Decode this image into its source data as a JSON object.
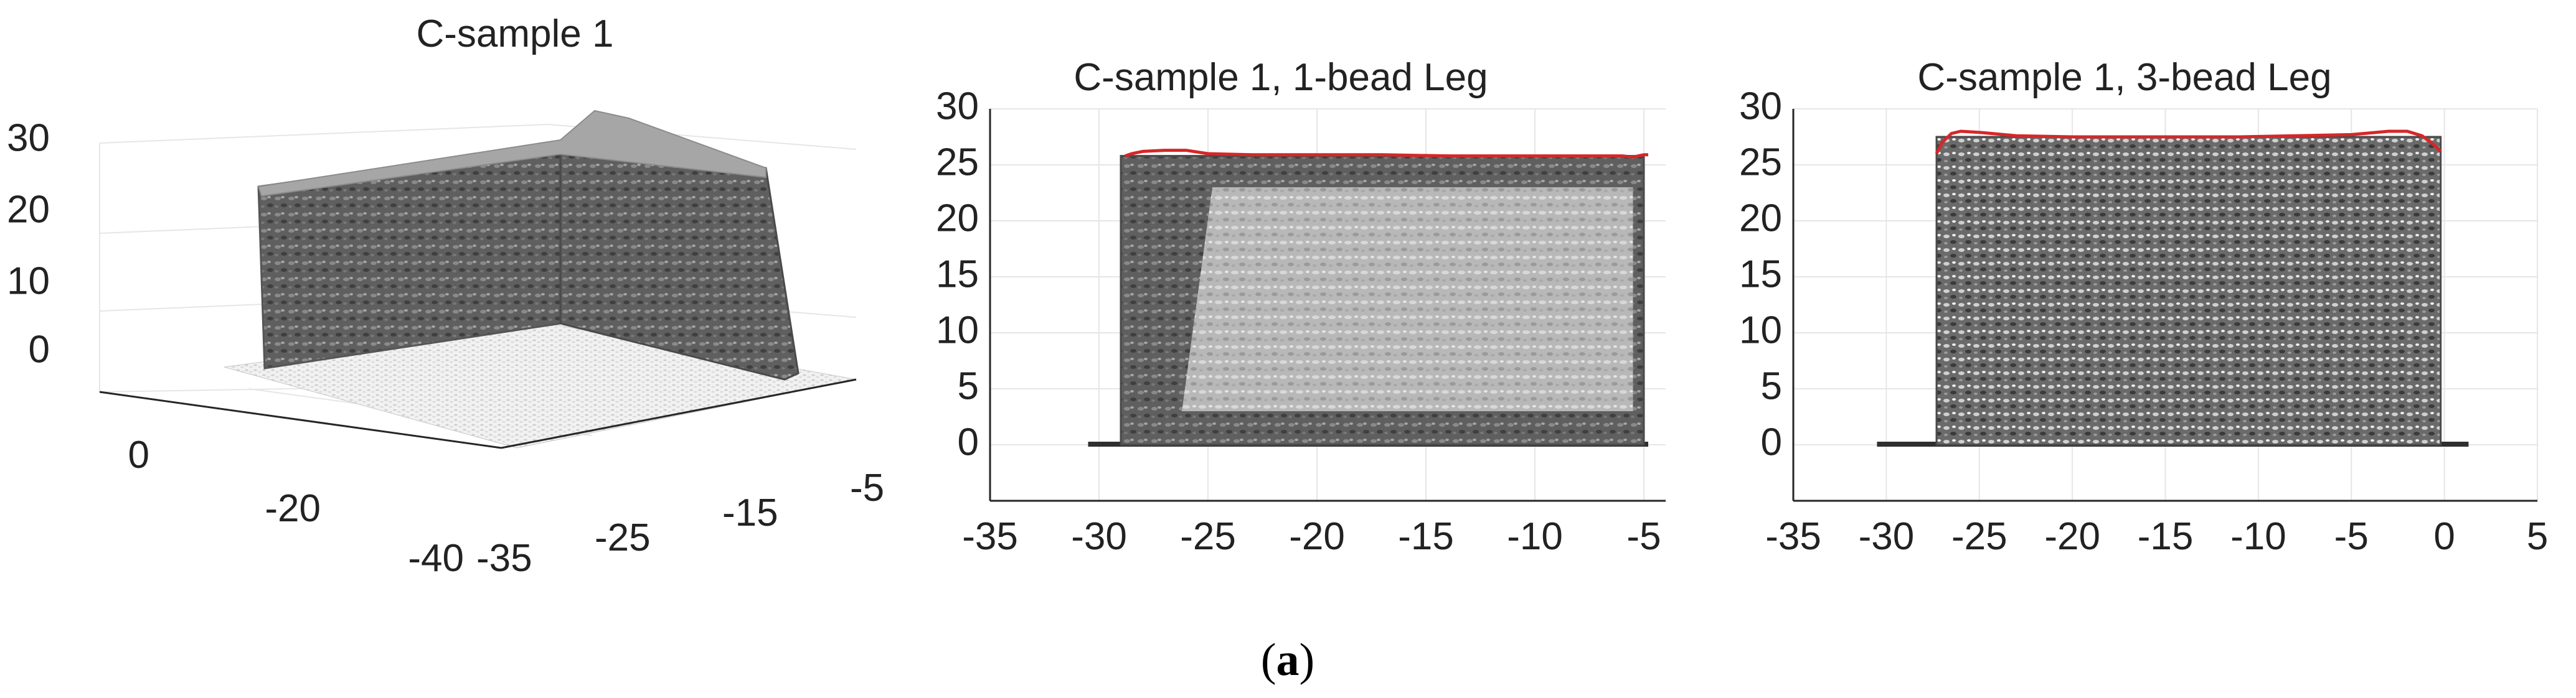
{
  "chart_data": [
    {
      "type": "scatter",
      "title": "C-sample 1",
      "view": "3d",
      "x_ticks": [
        "-35",
        "-25",
        "-15",
        "-5"
      ],
      "y_ticks": [
        "0",
        "-20",
        "-40"
      ],
      "z_ticks": [
        "0",
        "10",
        "20",
        "30"
      ],
      "xlim": [
        -35,
        -5
      ],
      "ylim": [
        -40,
        0
      ],
      "zlim": [
        0,
        30
      ],
      "grid": true
    },
    {
      "type": "line",
      "title": "C-sample 1, 1-bead Leg",
      "xlim": [
        -35,
        -4
      ],
      "ylim": [
        -5,
        30
      ],
      "x_ticks": [
        -35,
        -30,
        -25,
        -20,
        -15,
        -10,
        -5
      ],
      "y_ticks": [
        0,
        5,
        10,
        15,
        20,
        25,
        30
      ],
      "grid": true,
      "line_color": "#d62728",
      "series": [
        {
          "x": [
            -28.8,
            -28.5,
            -28,
            -27,
            -26,
            -25,
            -23,
            -20,
            -17,
            -14,
            -11,
            -8,
            -6.5,
            -6,
            -5.5,
            -5,
            -4.8
          ],
          "y": [
            25.8,
            26.0,
            26.2,
            26.3,
            26.3,
            26.0,
            25.9,
            25.9,
            25.9,
            25.8,
            25.8,
            25.8,
            25.8,
            25.8,
            25.7,
            25.9,
            25.9
          ]
        }
      ],
      "profile_extent": {
        "base_x": [
          -30.5,
          -4.8
        ],
        "wall_x": [
          -29,
          -5
        ],
        "wall_top": 25.8
      }
    },
    {
      "type": "line",
      "title": "C-sample 1, 3-bead Leg",
      "xlim": [
        -35,
        5
      ],
      "ylim": [
        -5,
        30
      ],
      "x_ticks": [
        -35,
        -30,
        -25,
        -20,
        -15,
        -10,
        -5,
        0,
        5
      ],
      "y_ticks": [
        0,
        5,
        10,
        15,
        20,
        25,
        30
      ],
      "grid": true,
      "line_color": "#d62728",
      "series": [
        {
          "x": [
            -27.3,
            -27,
            -26.5,
            -26,
            -25,
            -23,
            -20,
            -17,
            -14,
            -11,
            -8,
            -5,
            -3,
            -2,
            -1.2,
            -0.5,
            -0.2
          ],
          "y": [
            26.0,
            27.0,
            27.8,
            28.0,
            27.9,
            27.6,
            27.5,
            27.5,
            27.5,
            27.5,
            27.6,
            27.7,
            28.0,
            28.0,
            27.6,
            26.7,
            26.2
          ]
        }
      ],
      "profile_extent": {
        "base_x": [
          -30.5,
          1.3
        ],
        "wall_x": [
          -27.3,
          -0.2
        ],
        "wall_top": 27.5
      }
    }
  ],
  "caption": {
    "open": "(",
    "label": "a",
    "close": ")"
  }
}
